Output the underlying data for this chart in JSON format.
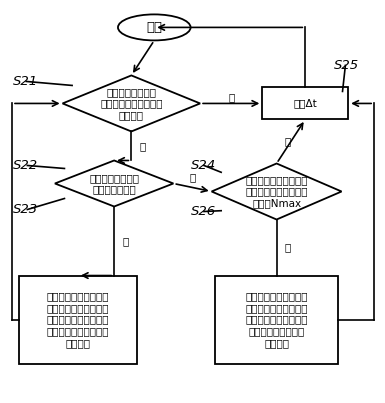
{
  "bg": "#ffffff",
  "start_text": "开始",
  "d1_text": "当前时刻请求队列\n中是否存在尚未处理的\n业务请求",
  "delay_text": "延时Δt",
  "d2_text": "当前时刻是否存在\n空闲的待用线程",
  "d3_text": "当前时刻待用线程的总\n数是否已达到预设最大\n线程数Nmax",
  "box1_text": "分配调用一个空闲的待\n用线程对请求队列中当\n前时刻排队最靠前的一\n个尚未处理的业务请求\n进行处理",
  "box2_text": "再创建一个空闲的待用\n线程对请求队列中当前\n时刻排队最靠前的一个\n尚未处理的业务请求\n进行处理",
  "yes": "是",
  "no": "否",
  "s21": "S21",
  "s22": "S22",
  "s23": "S23",
  "s24": "S24",
  "s25": "S25",
  "s26": "S26",
  "fs_main": 7.5,
  "fs_label": 9.5,
  "fs_yn": 7.5
}
